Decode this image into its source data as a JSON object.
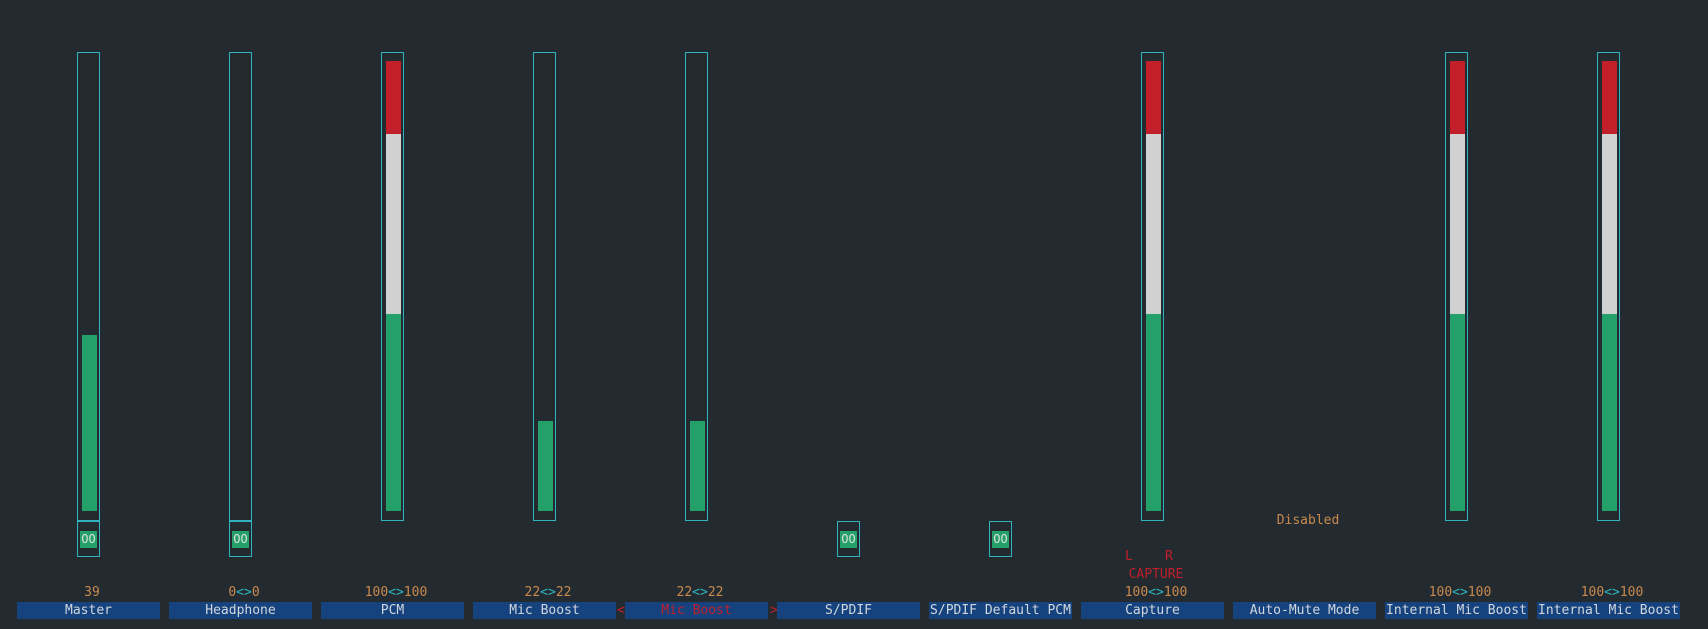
{
  "app": "alsamixer",
  "colors": {
    "background": "#232a30",
    "frame": "#2fb4be",
    "level_green": "#24a06a",
    "level_white": "#d1d1d1",
    "level_red": "#c21f2b",
    "value_text": "#c88a4e",
    "name_bg": "#16427e"
  },
  "channels": [
    {
      "id": "master",
      "name": "Master",
      "value": "39",
      "has_bar": true,
      "level": 0.39,
      "mute": "OO"
    },
    {
      "id": "headphone",
      "name": "Headphone",
      "value_left": "0",
      "value_right": "0",
      "sep": "<>",
      "has_bar": true,
      "level": 0,
      "mute": "OO"
    },
    {
      "id": "pcm",
      "name": "PCM",
      "value_left": "100",
      "value_right": "100",
      "sep": "<>",
      "has_bar": true,
      "level": 1.0
    },
    {
      "id": "mic-boost",
      "name": "Mic Boost",
      "value_left": "22",
      "value_right": "22",
      "sep": "<>",
      "has_bar": true,
      "level": 0.2
    },
    {
      "id": "mic-boost-2",
      "name": "Mic Boost",
      "value_left": "22",
      "value_right": "22",
      "sep": "<>",
      "has_bar": true,
      "level": 0.2,
      "selected": true,
      "arrow_left": "<",
      "arrow_right": ">"
    },
    {
      "id": "spdif",
      "name": "S/PDIF",
      "has_bar": false,
      "mute": "OO"
    },
    {
      "id": "spdif-default-pcm",
      "name": "S/PDIF Default PCM",
      "has_bar": false,
      "mute": "OO"
    },
    {
      "id": "capture",
      "name": "Capture",
      "value_left": "100",
      "value_right": "100",
      "sep": "<>",
      "has_bar": true,
      "level": 1.0,
      "capture_l": "L",
      "capture_r": "R",
      "capture_label": "CAPTURE"
    },
    {
      "id": "auto-mute-mode",
      "name": "Auto-Mute Mode",
      "has_bar": false,
      "enum_value": "Disabled"
    },
    {
      "id": "internal-mic-boost",
      "name": "Internal Mic Boost",
      "value_left": "100",
      "value_right": "100",
      "sep": "<>",
      "has_bar": true,
      "level": 1.0
    },
    {
      "id": "internal-mic-boost-2",
      "name": "Internal Mic Boost",
      "value_left": "100",
      "value_right": "100",
      "sep": "<>",
      "has_bar": true,
      "level": 1.0
    }
  ]
}
